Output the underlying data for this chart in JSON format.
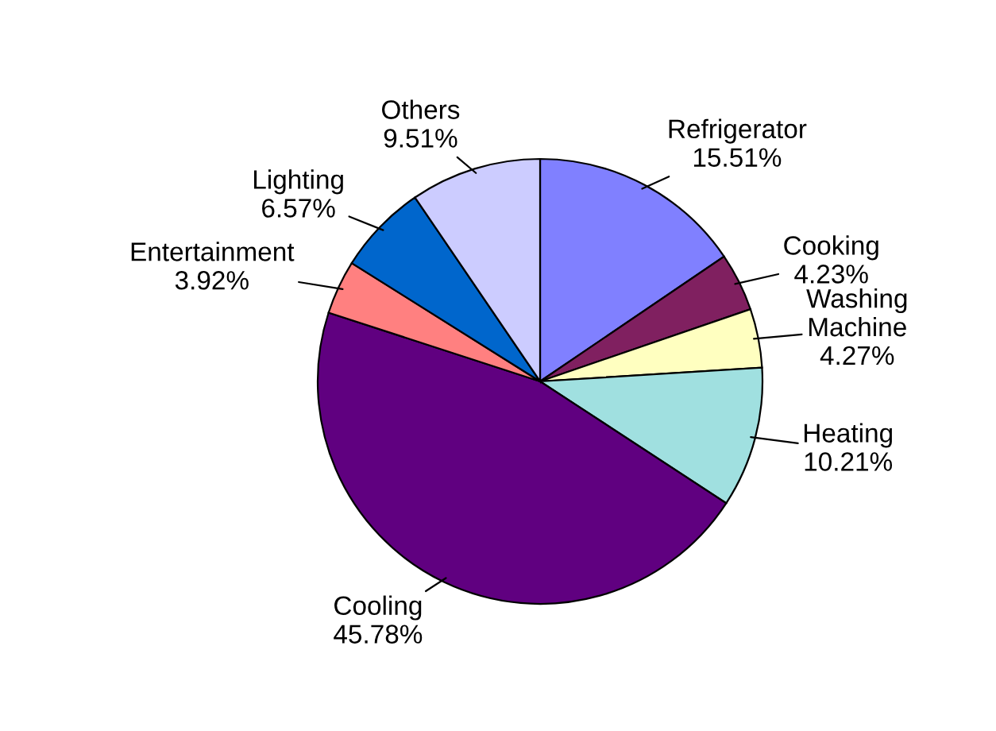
{
  "chart_data": {
    "type": "pie",
    "categories": [
      "Refrigerator",
      "Cooking",
      "Washing\nMachine",
      "Heating",
      "Cooling",
      "Entertainment",
      "Lighting",
      "Others"
    ],
    "values": [
      15.51,
      4.23,
      4.27,
      10.21,
      45.78,
      3.92,
      6.57,
      9.51
    ],
    "value_labels": [
      "15.51%",
      "4.23%",
      "4.27%",
      "10.21%",
      "45.78%",
      "3.92%",
      "6.57%",
      "9.51%"
    ],
    "colors": [
      "#8080ff",
      "#802060",
      "#ffffc0",
      "#a0e0e0",
      "#600080",
      "#ff8080",
      "#0066cc",
      "#ccccff"
    ],
    "legend": false
  }
}
